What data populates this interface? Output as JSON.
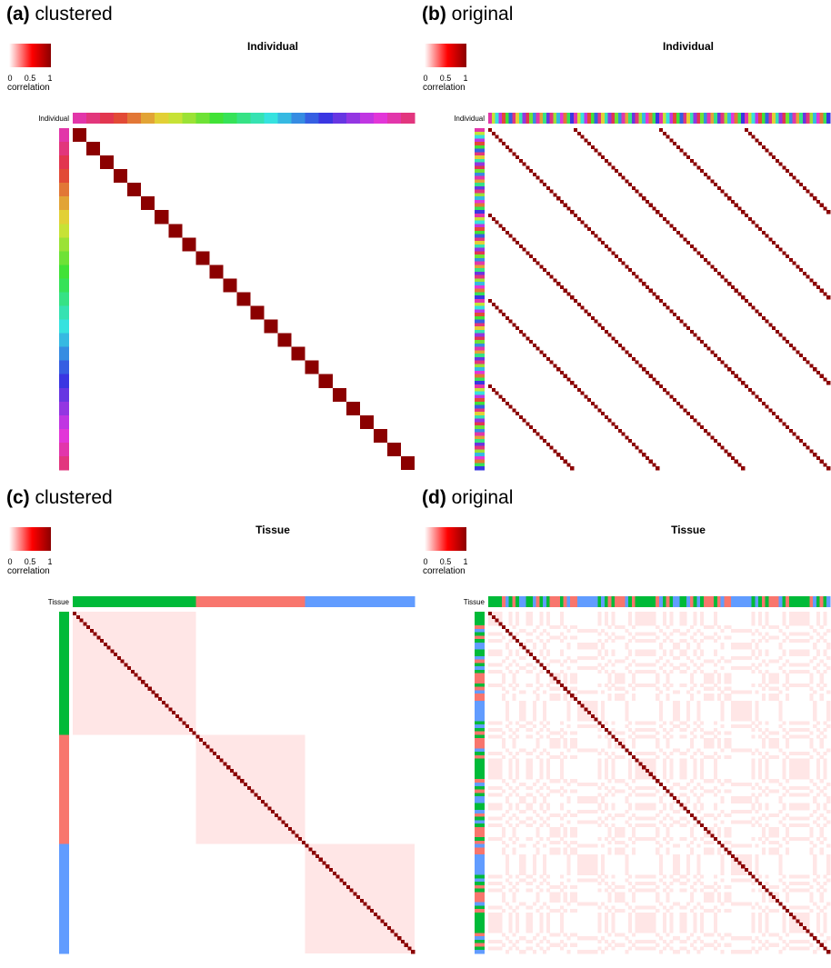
{
  "chart_data": [
    {
      "type": "heatmap",
      "panel_letter": "(a)",
      "panel_caption": "clustered",
      "title": "Individual",
      "annotation_label": "Individual",
      "legend": {
        "caption": "correlation",
        "ticks": [
          "0",
          "0.5",
          "1"
        ],
        "scale_colors": [
          "#ffffff",
          "#ff0000",
          "#8b0000"
        ]
      },
      "ordering": "clustered",
      "n_samples": 100,
      "n_groups": 25,
      "group_size": 4,
      "diagonal_value": 1,
      "within_group_value": 1,
      "off_diagonal_value": 0,
      "annotation_palette": "hue-spectrum (25 individuals)"
    },
    {
      "type": "heatmap",
      "panel_letter": "(b)",
      "panel_caption": "original",
      "title": "Individual",
      "annotation_label": "Individual",
      "legend": {
        "caption": "correlation",
        "ticks": [
          "0",
          "0.5",
          "1"
        ],
        "scale_colors": [
          "#ffffff",
          "#ff0000",
          "#8b0000"
        ]
      },
      "ordering": "original",
      "n_samples": 100,
      "n_groups": 25,
      "high_correlation_offsets": [
        -75,
        -50,
        -25,
        0,
        25,
        50,
        75
      ],
      "diagonal_value": 1,
      "off_diagonal_value": 0
    },
    {
      "type": "heatmap",
      "panel_letter": "(c)",
      "panel_caption": "clustered",
      "title": "Tissue",
      "annotation_label": "Tissue",
      "legend": {
        "caption": "correlation",
        "ticks": [
          "0",
          "0.5",
          "1"
        ],
        "scale_colors": [
          "#ffffff",
          "#ff0000",
          "#8b0000"
        ]
      },
      "ordering": "clustered",
      "n_samples": 100,
      "groups": [
        {
          "size": 36,
          "color": "#00ba38"
        },
        {
          "size": 32,
          "color": "#f8766d"
        },
        {
          "size": 32,
          "color": "#619cff"
        }
      ],
      "diagonal_value": 1,
      "within_group_value": 0.05,
      "off_diagonal_value": 0
    },
    {
      "type": "heatmap",
      "panel_letter": "(d)",
      "panel_caption": "original",
      "title": "Tissue",
      "annotation_label": "Tissue",
      "legend": {
        "caption": "correlation",
        "ticks": [
          "0",
          "0.5",
          "1"
        ],
        "scale_colors": [
          "#ffffff",
          "#ff0000",
          "#8b0000"
        ]
      },
      "ordering": "original",
      "n_samples": 100,
      "group_colors": [
        "#00ba38",
        "#f8766d",
        "#619cff"
      ],
      "diagonal_value": 1,
      "within_group_value": 0.05,
      "off_diagonal_value": 0
    }
  ]
}
